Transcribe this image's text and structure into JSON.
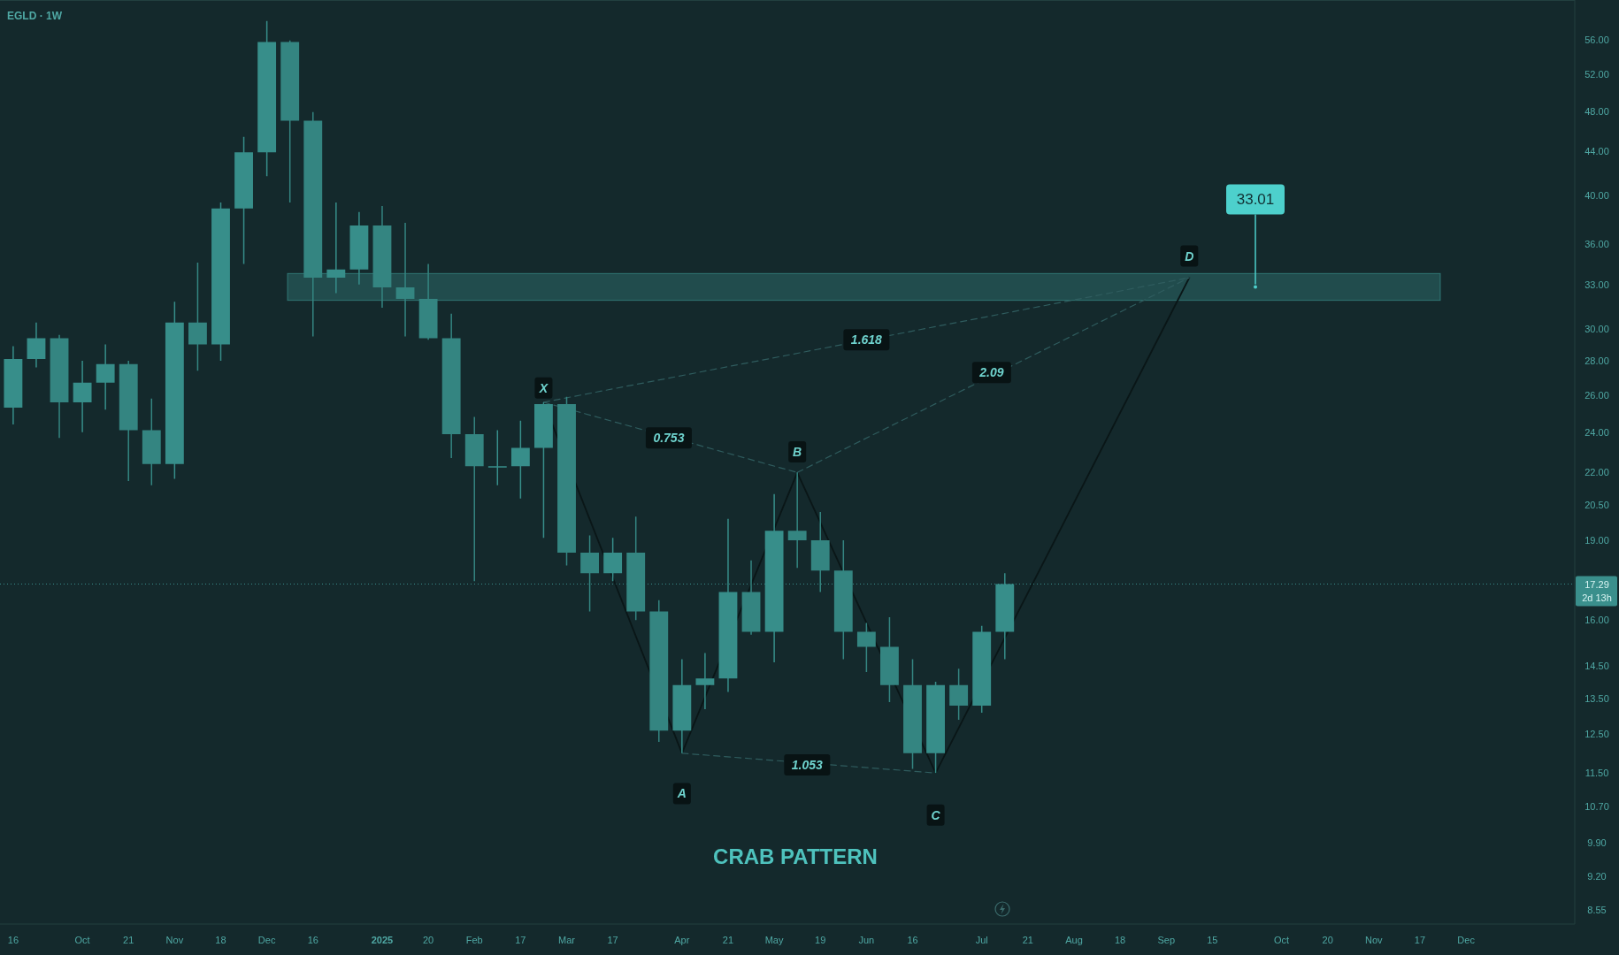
{
  "chart_data": {
    "type": "candlestick",
    "title": "EGLD · 1W",
    "color": "#378e8a",
    "log": true,
    "x": [
      "2024-09-16",
      "2024-09-23",
      "2024-09-30",
      "2024-10-07",
      "2024-10-14",
      "2024-10-21",
      "2024-10-28",
      "2024-11-04",
      "2024-11-11",
      "2024-11-18",
      "2024-11-25",
      "2024-12-02",
      "2024-12-09",
      "2024-12-16",
      "2024-12-23",
      "2024-12-30",
      "2025-01-06",
      "2025-01-13",
      "2025-01-20",
      "2025-01-27",
      "2025-02-03",
      "2025-02-10",
      "2025-02-17",
      "2025-02-24",
      "2025-03-03",
      "2025-03-10",
      "2025-03-17",
      "2025-03-24",
      "2025-03-31",
      "2025-04-07",
      "2025-04-14",
      "2025-04-21",
      "2025-04-28",
      "2025-05-05",
      "2025-05-12",
      "2025-05-19",
      "2025-05-26",
      "2025-06-02",
      "2025-06-09",
      "2025-06-16",
      "2025-06-23",
      "2025-06-30",
      "2025-07-07",
      "2025-07-14"
    ],
    "ohlc": [
      [
        25.3,
        28.9,
        24.4,
        28.1
      ],
      [
        28.1,
        30.4,
        27.6,
        29.4
      ],
      [
        29.4,
        29.6,
        23.7,
        25.6
      ],
      [
        25.6,
        28.0,
        24.0,
        26.7
      ],
      [
        26.7,
        29.0,
        25.2,
        27.8
      ],
      [
        27.8,
        28.0,
        21.6,
        24.1
      ],
      [
        24.1,
        25.8,
        21.4,
        22.4
      ],
      [
        22.4,
        31.8,
        21.7,
        30.4
      ],
      [
        30.4,
        34.6,
        27.4,
        29.0
      ],
      [
        29.0,
        39.4,
        28.0,
        38.9
      ],
      [
        38.9,
        45.4,
        34.5,
        43.9
      ],
      [
        43.9,
        58.3,
        41.7,
        55.7
      ],
      [
        55.7,
        55.9,
        39.4,
        47.0
      ],
      [
        47.0,
        47.9,
        29.5,
        33.5
      ],
      [
        33.5,
        39.4,
        32.4,
        34.1
      ],
      [
        34.1,
        38.6,
        33.0,
        37.5
      ],
      [
        37.5,
        39.1,
        31.4,
        32.8
      ],
      [
        32.8,
        37.7,
        29.5,
        32.0
      ],
      [
        32.0,
        34.5,
        29.3,
        29.4
      ],
      [
        29.4,
        31.0,
        22.7,
        23.9
      ],
      [
        23.9,
        24.8,
        17.4,
        22.3
      ],
      [
        22.3,
        24.1,
        21.4,
        22.3
      ],
      [
        22.3,
        24.6,
        20.8,
        23.2
      ],
      [
        23.2,
        25.6,
        19.1,
        25.5
      ],
      [
        25.5,
        25.9,
        18.0,
        18.5
      ],
      [
        18.5,
        19.2,
        16.3,
        17.7
      ],
      [
        17.7,
        19.1,
        17.4,
        18.5
      ],
      [
        18.5,
        20.0,
        16.0,
        16.3
      ],
      [
        16.3,
        16.7,
        12.3,
        12.6
      ],
      [
        12.6,
        14.7,
        12.0,
        13.9
      ],
      [
        13.9,
        14.9,
        13.2,
        14.1
      ],
      [
        14.1,
        19.9,
        13.7,
        17.0
      ],
      [
        17.0,
        18.2,
        15.5,
        15.6
      ],
      [
        15.6,
        21.0,
        14.6,
        19.4
      ],
      [
        19.4,
        22.0,
        17.9,
        19.0
      ],
      [
        19.0,
        20.2,
        17.0,
        17.8
      ],
      [
        17.8,
        19.0,
        14.7,
        15.6
      ],
      [
        15.6,
        15.9,
        14.3,
        15.1
      ],
      [
        15.1,
        16.1,
        13.4,
        13.9
      ],
      [
        13.9,
        14.7,
        11.6,
        12.0
      ],
      [
        12.0,
        14.0,
        11.5,
        13.9
      ],
      [
        13.9,
        14.4,
        12.9,
        13.3
      ],
      [
        13.3,
        15.8,
        13.1,
        15.6
      ],
      [
        15.6,
        17.7,
        14.7,
        17.29
      ]
    ],
    "series": [
      {
        "type": "line",
        "x": [
          "2025-02-24",
          "2025-04-07",
          "2025-05-12",
          "2025-06-23",
          "2025-09-08"
        ],
        "values": [
          25.6,
          12.0,
          22.0,
          11.5,
          33.5
        ],
        "color": "#0a1617"
      },
      {
        "type": "line",
        "line_style": "dashed",
        "x": [
          "2025-02-24",
          "2025-05-12"
        ],
        "values": [
          25.6,
          22.0
        ],
        "color": "#2f5c5e"
      },
      {
        "type": "line",
        "line_style": "dashed",
        "x": [
          "2025-04-07",
          "2025-06-23"
        ],
        "values": [
          12.0,
          11.5
        ],
        "color": "#2f5c5e"
      },
      {
        "type": "line",
        "line_style": "dashed",
        "x": [
          "2025-05-12",
          "2025-09-08"
        ],
        "values": [
          22.0,
          33.5
        ],
        "color": "#2f5c5e"
      },
      {
        "type": "line",
        "line_style": "dashed",
        "x": [
          "2025-02-24",
          "2025-09-08"
        ],
        "values": [
          25.6,
          33.5
        ],
        "color": "#2f5c5e"
      }
    ],
    "xlim": [
      "2024-09-12",
      "2026-01-03"
    ],
    "xticks": [
      {
        "value": "2024-09-16",
        "label": "16"
      },
      {
        "value": "2024-10-07",
        "label": "Oct"
      },
      {
        "value": "2024-10-21",
        "label": "21"
      },
      {
        "value": "2024-11-04",
        "label": "Nov"
      },
      {
        "value": "2024-11-18",
        "label": "18"
      },
      {
        "value": "2024-12-02",
        "label": "Dec"
      },
      {
        "value": "2024-12-16",
        "label": "16"
      },
      {
        "value": "2025-01-06",
        "label": "2025"
      },
      {
        "value": "2025-01-20",
        "label": "20"
      },
      {
        "value": "2025-02-03",
        "label": "Feb"
      },
      {
        "value": "2025-02-17",
        "label": "17"
      },
      {
        "value": "2025-03-03",
        "label": "Mar"
      },
      {
        "value": "2025-03-17",
        "label": "17"
      },
      {
        "value": "2025-04-07",
        "label": "Apr"
      },
      {
        "value": "2025-04-21",
        "label": "21"
      },
      {
        "value": "2025-05-05",
        "label": "May"
      },
      {
        "value": "2025-05-19",
        "label": "19"
      },
      {
        "value": "2025-06-02",
        "label": "Jun"
      },
      {
        "value": "2025-06-16",
        "label": "16"
      },
      {
        "value": "2025-07-07",
        "label": "Jul"
      },
      {
        "value": "2025-07-21",
        "label": "21"
      },
      {
        "value": "2025-08-04",
        "label": "Aug"
      },
      {
        "value": "2025-08-18",
        "label": "18"
      },
      {
        "value": "2025-09-01",
        "label": "Sep"
      },
      {
        "value": "2025-09-15",
        "label": "15"
      },
      {
        "value": "2025-10-06",
        "label": "Oct"
      },
      {
        "value": "2025-10-20",
        "label": "20"
      },
      {
        "value": "2025-11-03",
        "label": "Nov"
      },
      {
        "value": "2025-11-17",
        "label": "17"
      },
      {
        "value": "2025-12-01",
        "label": "Dec"
      }
    ],
    "ylim": [
      8.3,
      61
    ],
    "yticks": [
      {
        "value": 56,
        "label": "56.00"
      },
      {
        "value": 52,
        "label": "52.00"
      },
      {
        "value": 48,
        "label": "48.00"
      },
      {
        "value": 44,
        "label": "44.00"
      },
      {
        "value": 40,
        "label": "40.00"
      },
      {
        "value": 36,
        "label": "36.00"
      },
      {
        "value": 33,
        "label": "33.00"
      },
      {
        "value": 30,
        "label": "30.00"
      },
      {
        "value": 28,
        "label": "28.00"
      },
      {
        "value": 26,
        "label": "26.00"
      },
      {
        "value": 24,
        "label": "24.00"
      },
      {
        "value": 22,
        "label": "22.00"
      },
      {
        "value": 20.5,
        "label": "20.50"
      },
      {
        "value": 19,
        "label": "19.00"
      },
      {
        "value": 16,
        "label": "16.00"
      },
      {
        "value": 14.5,
        "label": "14.50"
      },
      {
        "value": 13.5,
        "label": "13.50"
      },
      {
        "value": 12.5,
        "label": "12.50"
      },
      {
        "value": 11.5,
        "label": "11.50"
      },
      {
        "value": 10.7,
        "label": "10.70"
      },
      {
        "value": 9.9,
        "label": "9.90"
      },
      {
        "value": 9.2,
        "label": "9.20"
      },
      {
        "value": 8.55,
        "label": "8.55"
      }
    ],
    "bands": [
      {
        "axis": "y",
        "from": 31.9,
        "to": 33.8,
        "color": "#3a8f8c"
      }
    ],
    "ref_lines": [
      {
        "axis": "y",
        "value": 17.29,
        "label": "17.29\n2d 13h",
        "color": "#3a8f8c",
        "line_style": "dotted"
      }
    ],
    "annotations": [
      {
        "text": "X",
        "x": "2025-02-24",
        "y": 26.4
      },
      {
        "text": "A",
        "x": "2025-04-07",
        "y": 11.0
      },
      {
        "text": "B",
        "x": "2025-05-12",
        "y": 23.0
      },
      {
        "text": "C",
        "x": "2025-06-23",
        "y": 10.5
      },
      {
        "text": "D",
        "x": "2025-09-08",
        "y": 35.1
      },
      {
        "text": "0.753",
        "x": "2025-04-03",
        "y": 23.7
      },
      {
        "text": "1.618",
        "x": "2025-06-02",
        "y": 29.3
      },
      {
        "text": "2.09",
        "x": "2025-07-10",
        "y": 27.3
      },
      {
        "text": "1.053",
        "x": "2025-05-15",
        "y": 11.7
      },
      "33.01",
      "CRAB PATTERN"
    ]
  }
}
